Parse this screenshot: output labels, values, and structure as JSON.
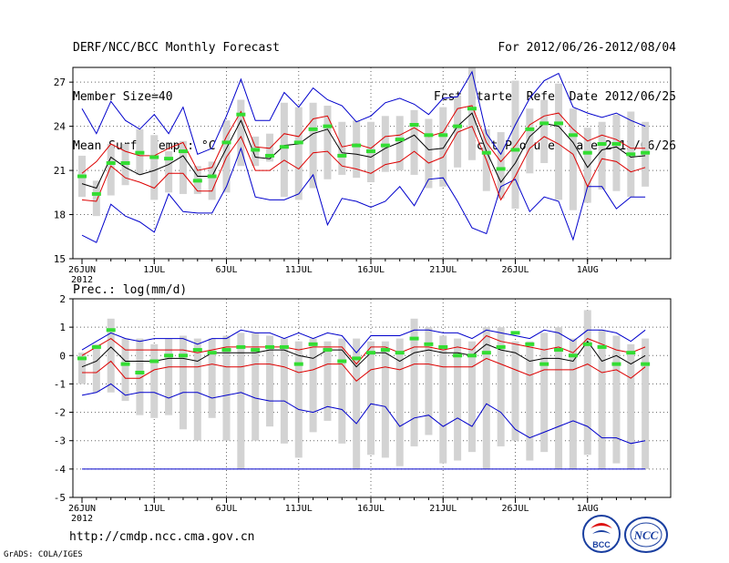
{
  "header": {
    "left": [
      "DERF/NCC/BCC Monthly Forecast",
      "Member Size=40",
      "Mean Surf. Temp.: °C"
    ],
    "right": [
      "For 2012/06/26-2012/08/04",
      "Fcst Started Refer Date 2012/06/25",
      "Fcst Produced Date 2012/06/26"
    ]
  },
  "footer": {
    "url": "http://cmdp.ncc.cma.gov.cn",
    "credit": "GrADS: COLA/IGES",
    "logo_bcc": "BCC",
    "logo_ncc": "NCC"
  },
  "colors": {
    "max_min": "#0000cc",
    "quartile": "#dd0000",
    "mean": "#000000",
    "median": "#33dd33",
    "box": "#d3d3d3",
    "axis": "#000000"
  },
  "chart_data": [
    {
      "type": "line",
      "title": "Mean Surf. Temp.: °C",
      "ylim": [
        15,
        28
      ],
      "yticks": [
        15,
        18,
        21,
        24,
        27
      ],
      "xticks": [
        {
          "day": 0,
          "label": "26JUN",
          "sub": "2012"
        },
        {
          "day": 5,
          "label": "1JUL"
        },
        {
          "day": 10,
          "label": "6JUL"
        },
        {
          "day": 15,
          "label": "11JUL"
        },
        {
          "day": 20,
          "label": "16JUL"
        },
        {
          "day": 25,
          "label": "21JUL"
        },
        {
          "day": 30,
          "label": "26JUL"
        },
        {
          "day": 35,
          "label": "1AUG"
        }
      ],
      "days": 40,
      "series": [
        {
          "name": "max",
          "values": [
            25.2,
            23.5,
            25.7,
            24.4,
            23.8,
            24.8,
            23.5,
            25.3,
            22.1,
            22.5,
            24.7,
            27.2,
            24.4,
            24.4,
            26.3,
            25.3,
            26.6,
            25.8,
            25.4,
            24.3,
            24.7,
            25.6,
            25.9,
            25.5,
            24.8,
            25.9,
            26.0,
            27.7,
            23.5,
            22.1,
            24.1,
            25.9,
            27.1,
            27.6,
            25.3,
            24.9,
            24.6,
            24.9,
            24.4,
            24.0
          ]
        },
        {
          "name": "q75",
          "values": [
            20.8,
            21.6,
            22.8,
            22.3,
            22.0,
            22.0,
            22.5,
            22.9,
            21.0,
            21.2,
            23.3,
            25.0,
            22.6,
            22.5,
            23.5,
            23.3,
            24.5,
            24.7,
            22.6,
            22.8,
            22.5,
            23.3,
            23.4,
            23.9,
            23.3,
            23.6,
            25.2,
            25.4,
            22.9,
            21.6,
            22.7,
            24.1,
            24.7,
            24.9,
            23.8,
            23.0,
            23.4,
            23.1,
            22.5,
            22.5
          ]
        },
        {
          "name": "mean",
          "values": [
            20.1,
            19.8,
            21.9,
            21.2,
            20.7,
            21.0,
            21.4,
            22.0,
            20.6,
            20.6,
            22.5,
            24.4,
            21.9,
            21.8,
            22.7,
            22.8,
            23.5,
            23.8,
            22.2,
            22.1,
            21.9,
            22.5,
            22.9,
            23.4,
            22.4,
            22.5,
            24.0,
            24.9,
            22.3,
            20.2,
            21.5,
            23.3,
            24.2,
            24.0,
            22.9,
            21.2,
            22.4,
            22.6,
            21.9,
            22.0
          ]
        },
        {
          "name": "q25",
          "values": [
            19.0,
            18.9,
            21.3,
            20.5,
            20.2,
            19.8,
            20.8,
            20.8,
            19.6,
            19.6,
            21.9,
            23.3,
            21.0,
            21.0,
            21.7,
            21.1,
            22.2,
            22.3,
            21.3,
            21.1,
            20.8,
            21.4,
            21.6,
            22.3,
            21.5,
            21.9,
            23.6,
            24.0,
            21.7,
            19.0,
            20.6,
            22.5,
            23.3,
            22.8,
            22.1,
            19.9,
            21.8,
            21.6,
            20.9,
            21.2
          ]
        },
        {
          "name": "min",
          "values": [
            16.6,
            16.1,
            18.7,
            17.9,
            17.5,
            16.8,
            19.4,
            18.2,
            18.1,
            18.1,
            19.9,
            22.5,
            19.2,
            19.0,
            19.0,
            19.4,
            20.7,
            17.3,
            19.1,
            18.9,
            18.5,
            18.9,
            19.9,
            18.6,
            20.4,
            20.5,
            18.9,
            17.1,
            16.7,
            19.9,
            20.4,
            18.2,
            19.2,
            18.9,
            16.3,
            19.9,
            19.9,
            18.4,
            19.2,
            19.2
          ]
        },
        {
          "name": "median",
          "values": [
            20.6,
            19.4,
            21.5,
            21.5,
            22.2,
            21.9,
            21.8,
            22.3,
            20.3,
            20.6,
            22.9,
            24.8,
            22.4,
            22.0,
            22.6,
            22.9,
            23.8,
            24.0,
            22.0,
            22.7,
            22.3,
            22.7,
            23.1,
            24.1,
            23.4,
            23.4,
            24.0,
            25.2,
            22.2,
            21.1,
            22.4,
            23.8,
            24.2,
            24.2,
            23.4,
            22.2,
            22.8,
            22.8,
            22.1,
            22.2
          ]
        },
        {
          "name": "box_hi",
          "values": [
            22.0,
            20.3,
            22.8,
            22.8,
            23.8,
            23.4,
            22.3,
            23.0,
            21.3,
            21.6,
            24.4,
            25.8,
            23.3,
            23.5,
            25.6,
            25.3,
            25.6,
            25.4,
            24.3,
            24.4,
            24.3,
            24.7,
            24.7,
            25.1,
            24.5,
            25.3,
            26.1,
            28.0,
            23.8,
            23.6,
            27.1,
            25.2,
            25.8,
            26.9,
            25.2,
            23.9,
            24.3,
            24.8,
            25.0,
            24.3
          ]
        },
        {
          "name": "box_lo",
          "values": [
            19.2,
            17.9,
            19.3,
            20.0,
            20.7,
            19.0,
            19.5,
            19.4,
            19.4,
            19.0,
            19.5,
            21.3,
            21.3,
            21.6,
            19.2,
            19.0,
            19.8,
            20.4,
            20.7,
            20.5,
            20.2,
            20.9,
            21.0,
            20.7,
            19.8,
            19.9,
            21.2,
            21.7,
            19.6,
            19.1,
            18.4,
            20.8,
            21.5,
            19.0,
            18.3,
            18.8,
            19.7,
            19.6,
            19.2,
            19.9
          ]
        }
      ]
    },
    {
      "type": "line",
      "title": "Prec.: log(mm/d)",
      "ylim": [
        -5,
        2
      ],
      "yticks": [
        -5,
        -4,
        -3,
        -2,
        -1,
        0,
        1,
        2
      ],
      "xticks": [
        {
          "day": 0,
          "label": "26JUN",
          "sub": "2012"
        },
        {
          "day": 5,
          "label": "1JUL"
        },
        {
          "day": 10,
          "label": "6JUL"
        },
        {
          "day": 15,
          "label": "11JUL"
        },
        {
          "day": 20,
          "label": "16JUL"
        },
        {
          "day": 25,
          "label": "21JUL"
        },
        {
          "day": 30,
          "label": "26JUL"
        },
        {
          "day": 35,
          "label": "1AUG"
        }
      ],
      "days": 40,
      "series": [
        {
          "name": "max",
          "values": [
            0.2,
            0.5,
            0.8,
            0.6,
            0.5,
            0.6,
            0.6,
            0.6,
            0.4,
            0.6,
            0.6,
            0.9,
            0.8,
            0.8,
            0.6,
            0.8,
            0.6,
            0.8,
            0.7,
            0.1,
            0.7,
            0.7,
            0.7,
            0.9,
            0.9,
            0.8,
            0.8,
            0.6,
            0.9,
            0.8,
            0.7,
            0.6,
            0.9,
            0.8,
            0.5,
            0.9,
            0.9,
            0.8,
            0.5,
            0.9
          ]
        },
        {
          "name": "q75",
          "values": [
            0.0,
            0.3,
            0.6,
            0.2,
            0.2,
            0.2,
            0.2,
            0.2,
            0.1,
            0.2,
            0.3,
            0.3,
            0.3,
            0.3,
            0.3,
            0.2,
            0.3,
            0.3,
            0.3,
            -0.3,
            0.3,
            0.3,
            0.1,
            0.3,
            0.3,
            0.2,
            0.3,
            0.2,
            0.7,
            0.5,
            0.4,
            0.3,
            0.2,
            0.3,
            0.1,
            0.6,
            0.4,
            0.2,
            0.1,
            0.3
          ]
        },
        {
          "name": "mean",
          "values": [
            -0.4,
            -0.2,
            0.3,
            -0.2,
            -0.2,
            -0.2,
            -0.1,
            -0.1,
            -0.2,
            0.1,
            0.1,
            0.1,
            0.1,
            0.2,
            0.2,
            0.0,
            -0.1,
            0.2,
            0.2,
            -0.4,
            0.1,
            0.1,
            -0.2,
            0.1,
            0.2,
            0.1,
            0.1,
            0.0,
            0.4,
            0.2,
            0.1,
            -0.2,
            -0.1,
            -0.1,
            -0.2,
            0.5,
            -0.2,
            0.0,
            -0.3,
            0.0
          ]
        },
        {
          "name": "q25",
          "values": [
            -0.6,
            -0.6,
            -0.2,
            -0.8,
            -0.8,
            -0.5,
            -0.4,
            -0.4,
            -0.4,
            -0.3,
            -0.4,
            -0.4,
            -0.3,
            -0.3,
            -0.4,
            -0.6,
            -0.5,
            -0.3,
            -0.3,
            -0.9,
            -0.5,
            -0.4,
            -0.5,
            -0.3,
            -0.3,
            -0.4,
            -0.4,
            -0.4,
            -0.1,
            -0.3,
            -0.5,
            -0.7,
            -0.5,
            -0.5,
            -0.5,
            -0.3,
            -0.6,
            -0.5,
            -0.8,
            -0.4
          ]
        },
        {
          "name": "min",
          "values": [
            -1.4,
            -1.3,
            -1.0,
            -1.4,
            -1.3,
            -1.3,
            -1.5,
            -1.3,
            -1.3,
            -1.5,
            -1.4,
            -1.3,
            -1.5,
            -1.6,
            -1.6,
            -1.9,
            -2.0,
            -1.8,
            -1.9,
            -2.4,
            -1.7,
            -1.8,
            -2.5,
            -2.2,
            -2.1,
            -2.5,
            -2.2,
            -2.5,
            -1.7,
            -2.0,
            -2.6,
            -2.9,
            -2.7,
            -2.5,
            -2.3,
            -2.5,
            -2.9,
            -2.9,
            -3.1,
            -3.0
          ]
        },
        {
          "name": "median",
          "values": [
            -0.1,
            0.3,
            0.9,
            -0.3,
            -0.6,
            -0.2,
            0.0,
            0.0,
            0.2,
            0.1,
            0.2,
            0.3,
            0.2,
            0.3,
            0.3,
            -0.3,
            0.4,
            0.2,
            -0.2,
            -0.1,
            0.1,
            0.2,
            0.1,
            0.6,
            0.4,
            0.3,
            0.0,
            0.0,
            0.1,
            0.3,
            0.8,
            0.4,
            -0.3,
            0.2,
            0.0,
            0.4,
            0.3,
            -0.3,
            0.1,
            -0.3
          ]
        },
        {
          "name": "box_hi",
          "values": [
            0.1,
            0.4,
            1.3,
            0.6,
            0.6,
            0.4,
            0.6,
            0.7,
            0.6,
            0.6,
            0.7,
            0.8,
            0.8,
            0.7,
            0.6,
            0.5,
            0.6,
            0.5,
            0.6,
            0.6,
            0.5,
            0.5,
            0.6,
            1.3,
            1.0,
            0.7,
            0.6,
            0.5,
            1.0,
            1.0,
            0.5,
            0.5,
            0.8,
            1.0,
            0.6,
            1.6,
            0.9,
            0.7,
            0.4,
            0.6
          ]
        },
        {
          "name": "box_lo",
          "values": [
            -1.0,
            -1.3,
            -1.3,
            -1.6,
            -2.1,
            -2.2,
            -2.1,
            -2.6,
            -3.0,
            -2.2,
            -3.0,
            -4.0,
            -3.0,
            -2.5,
            -3.1,
            -3.6,
            -2.7,
            -2.3,
            -3.1,
            -4.0,
            -3.5,
            -3.6,
            -3.9,
            -3.2,
            -2.8,
            -3.8,
            -3.7,
            -3.4,
            -4.0,
            -3.2,
            -3.0,
            -3.7,
            -3.4,
            -4.0,
            -4.0,
            -3.5,
            -4.0,
            -3.8,
            -4.0,
            -4.0
          ]
        },
        {
          "name": "floor",
          "values": [
            -4,
            -4,
            -4,
            -4,
            -4,
            -4,
            -4,
            -4,
            -4,
            -4,
            -4,
            -4,
            -4,
            -4,
            -4,
            -4,
            -4,
            -4,
            -4,
            -4,
            -4,
            -4,
            -4,
            -4,
            -4,
            -4,
            -4,
            -4,
            -4,
            -4,
            -4,
            -4,
            -4,
            -4,
            -4,
            -4,
            -4,
            -4,
            -4,
            -4
          ]
        }
      ]
    }
  ]
}
